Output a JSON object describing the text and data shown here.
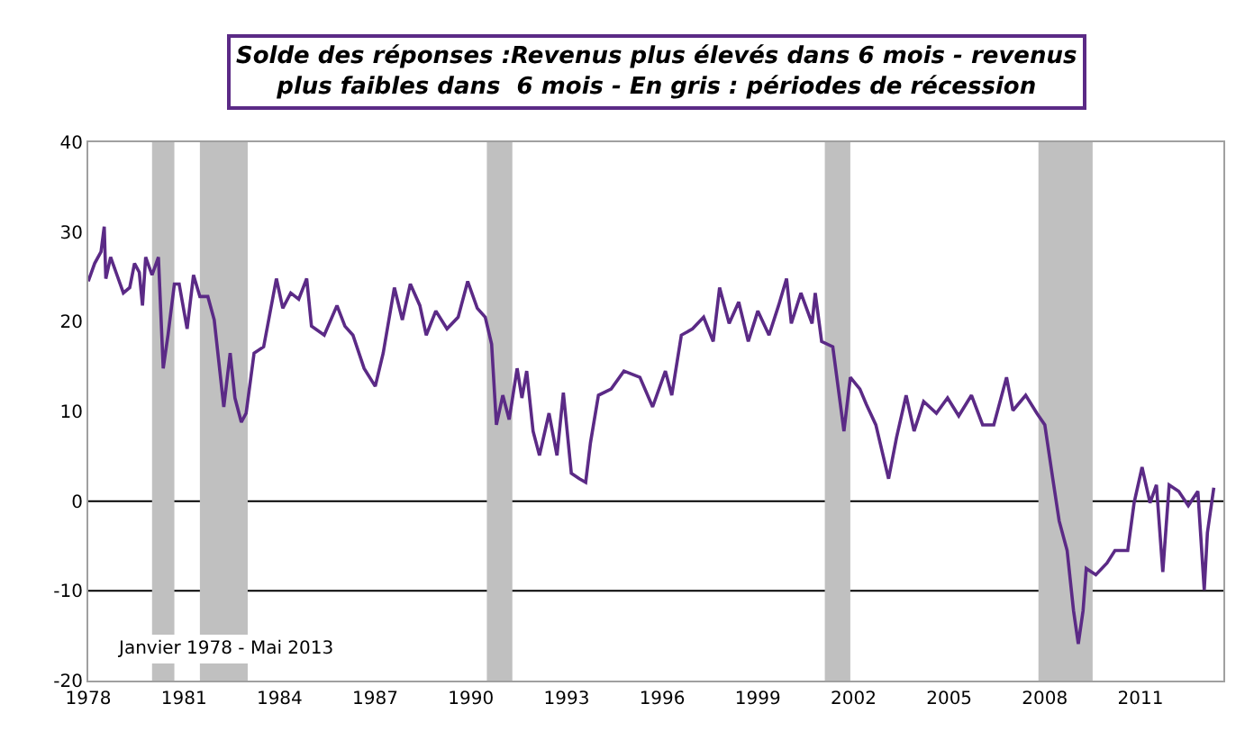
{
  "chart_data": {
    "type": "line",
    "title": "Solde des réponses :Revenus plus élevés dans 6 mois - revenus\nplus faibles dans  6 mois - En gris : périodes de récession",
    "x": [
      1978.0,
      1978.2,
      1978.4,
      1978.5,
      1978.55,
      1978.7,
      1978.9,
      1979.1,
      1979.3,
      1979.45,
      1979.6,
      1979.7,
      1979.8,
      1980.0,
      1980.2,
      1980.35,
      1980.5,
      1980.7,
      1980.85,
      1981.1,
      1981.3,
      1981.5,
      1981.75,
      1981.95,
      1982.25,
      1982.45,
      1982.6,
      1982.8,
      1982.95,
      1983.2,
      1983.5,
      1983.9,
      1984.1,
      1984.35,
      1984.6,
      1984.85,
      1985.0,
      1985.4,
      1985.8,
      1986.05,
      1986.3,
      1986.65,
      1987.0,
      1987.25,
      1987.6,
      1987.85,
      1988.1,
      1988.4,
      1988.6,
      1988.9,
      1989.25,
      1989.6,
      1989.9,
      1990.2,
      1990.45,
      1990.65,
      1990.8,
      1991.0,
      1991.2,
      1991.45,
      1991.6,
      1991.75,
      1991.95,
      1992.15,
      1992.45,
      1992.7,
      1992.9,
      1993.15,
      1993.4,
      1993.6,
      1993.75,
      1994.0,
      1994.4,
      1994.8,
      1995.3,
      1995.7,
      1996.1,
      1996.3,
      1996.6,
      1996.95,
      1997.3,
      1997.6,
      1997.8,
      1998.1,
      1998.4,
      1998.7,
      1999.0,
      1999.35,
      1999.65,
      1999.9,
      2000.05,
      2000.35,
      2000.7,
      2000.8,
      2001.0,
      2001.35,
      2001.7,
      2001.9,
      2002.2,
      2002.4,
      2002.7,
      2003.1,
      2003.35,
      2003.65,
      2003.9,
      2004.2,
      2004.6,
      2004.95,
      2005.3,
      2005.7,
      2006.05,
      2006.4,
      2006.8,
      2007.0,
      2007.4,
      2007.75,
      2008.0,
      2008.25,
      2008.45,
      2008.7,
      2008.9,
      2009.05,
      2009.2,
      2009.3,
      2009.6,
      2009.95,
      2010.2,
      2010.6,
      2010.8,
      2011.05,
      2011.3,
      2011.5,
      2011.7,
      2011.9,
      2012.2,
      2012.5,
      2012.8,
      2013.0,
      2013.1,
      2013.3
    ],
    "series": [
      {
        "color": "#5b2a86",
        "values": [
          24.5,
          26.5,
          27.8,
          30.6,
          24.8,
          27.2,
          25.2,
          23.2,
          23.8,
          26.5,
          25.5,
          21.8,
          27.2,
          25.2,
          27.2,
          14.8,
          18.5,
          24.2,
          24.2,
          19.2,
          25.2,
          22.8,
          22.8,
          20.2,
          10.5,
          16.5,
          11.5,
          8.8,
          9.8,
          16.5,
          17.2,
          24.8,
          21.5,
          23.2,
          22.5,
          24.8,
          19.5,
          18.5,
          21.8,
          19.5,
          18.5,
          14.8,
          12.8,
          16.5,
          23.8,
          20.2,
          24.2,
          21.8,
          18.5,
          21.2,
          19.2,
          20.5,
          24.5,
          21.5,
          20.5,
          17.5,
          8.5,
          11.8,
          9.1,
          14.8,
          11.5,
          14.5,
          7.8,
          5.1,
          9.8,
          5.1,
          12.1,
          3.1,
          2.5,
          2.1,
          6.5,
          11.8,
          12.5,
          14.5,
          13.8,
          10.5,
          14.5,
          11.8,
          18.5,
          19.2,
          20.5,
          17.8,
          23.8,
          19.8,
          22.2,
          17.8,
          21.2,
          18.5,
          21.8,
          24.8,
          19.8,
          23.2,
          19.8,
          23.2,
          17.8,
          17.2,
          7.8,
          13.8,
          12.5,
          10.8,
          8.5,
          2.5,
          7.1,
          11.8,
          7.8,
          11.1,
          9.8,
          11.5,
          9.5,
          11.8,
          8.5,
          8.5,
          13.8,
          10.1,
          11.8,
          9.8,
          8.5,
          2.5,
          -2.2,
          -5.5,
          -12.2,
          -15.9,
          -12.2,
          -7.5,
          -8.2,
          -6.9,
          -5.5,
          -5.5,
          -0.2,
          3.8,
          -0.2,
          1.8,
          -7.9,
          1.8,
          1.1,
          -0.5,
          1.1,
          -9.9,
          -3.5,
          1.5
        ]
      }
    ],
    "xlim": [
      1978,
      2013.6
    ],
    "xticks": [
      1978,
      1981,
      1984,
      1987,
      1990,
      1993,
      1996,
      1999,
      2002,
      2005,
      2008,
      2011
    ],
    "ylim": [
      -20,
      40
    ],
    "yticks": [
      -20,
      -10,
      0,
      10,
      20,
      30,
      40
    ],
    "grid": false,
    "ref_lines": [
      {
        "axis": "y",
        "value": 0,
        "color": "#000000"
      },
      {
        "axis": "y",
        "value": -10,
        "color": "#000000"
      }
    ],
    "bands": [
      {
        "axis": "x",
        "from": 1980.0,
        "to": 1980.7,
        "color": "#c0c0c0"
      },
      {
        "axis": "x",
        "from": 1981.5,
        "to": 1983.0,
        "color": "#c0c0c0"
      },
      {
        "axis": "x",
        "from": 1990.5,
        "to": 1991.3,
        "color": "#c0c0c0"
      },
      {
        "axis": "x",
        "from": 2001.1,
        "to": 2001.9,
        "color": "#c0c0c0"
      },
      {
        "axis": "x",
        "from": 2007.8,
        "to": 2009.5,
        "color": "#c0c0c0"
      }
    ],
    "annotations": [
      "Janvier 1978 - Mai 2013"
    ]
  }
}
